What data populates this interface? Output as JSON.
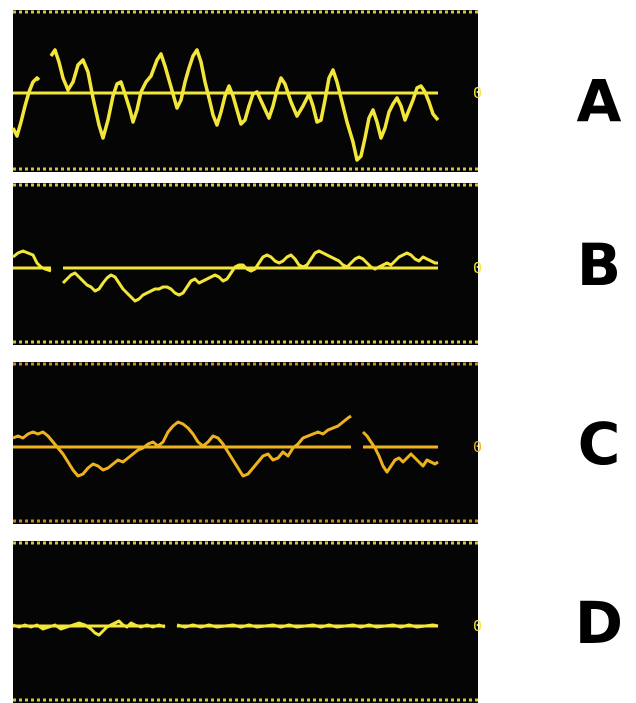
{
  "colors": {
    "background": "#050505",
    "yellow": "#f3e63a",
    "orange": "#eeb21f"
  },
  "rows": [
    {
      "letter": "A",
      "zero_label": "0",
      "color": "#f3e63a"
    },
    {
      "letter": "B",
      "zero_label": "0",
      "color": "#f3e63a"
    },
    {
      "letter": "C",
      "zero_label": "0",
      "color": "#eeb21f"
    },
    {
      "letter": "D",
      "zero_label": "0",
      "color": "#f3e63a"
    }
  ]
}
